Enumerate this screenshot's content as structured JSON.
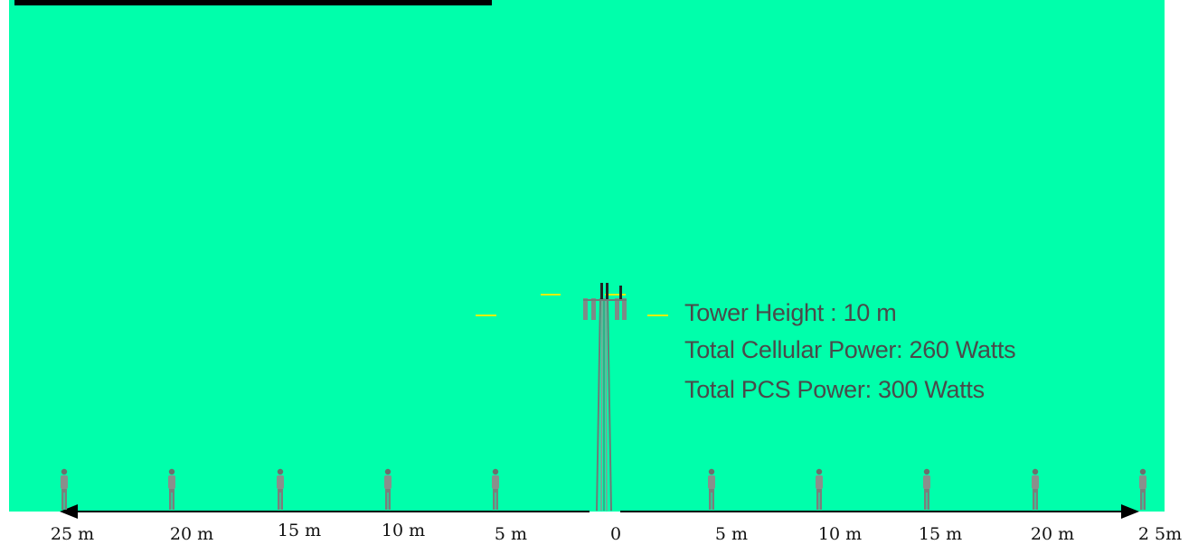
{
  "tower": {
    "height_label": "Tower Height : 10 m",
    "cellular_power_label": "Total Cellular Power: 260 Watts",
    "pcs_power_label": "Total PCS Power: 300 Watts"
  },
  "distance_axis": {
    "labels": [
      "25 m",
      "20 m",
      "15 m",
      "10 m",
      "5 m",
      "0",
      "5 m",
      "10 m",
      "15 m",
      "20 m",
      "2 5m"
    ]
  },
  "colors": {
    "background": "#00FFAB",
    "beam_marker": "#E8F000",
    "tower": "#6E7B78",
    "person": "#8A8F8C"
  }
}
